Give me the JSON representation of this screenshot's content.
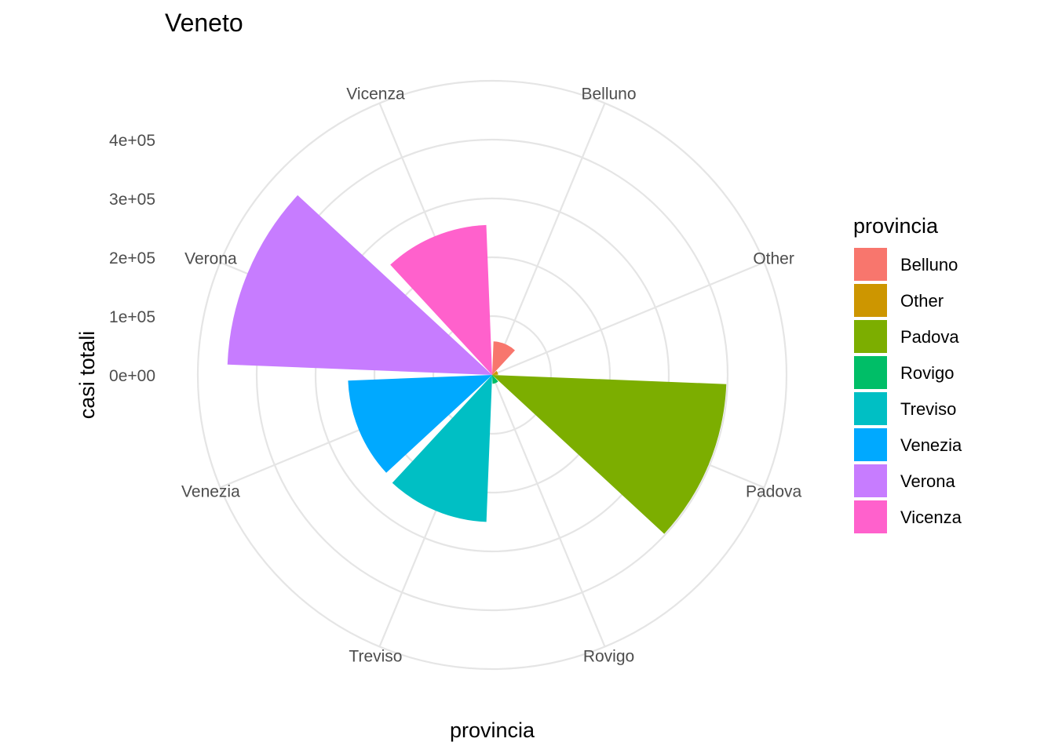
{
  "chart_data": {
    "type": "bar",
    "coord": "polar",
    "title": "Veneto",
    "xlabel": "provincia",
    "ylabel": "casi totali",
    "categories": [
      "Belluno",
      "Other",
      "Padova",
      "Rovigo",
      "Treviso",
      "Venezia",
      "Verona",
      "Vicenza"
    ],
    "values": [
      57000,
      10000,
      398000,
      15000,
      250000,
      245000,
      450000,
      255000
    ],
    "colors": [
      "#F8766D",
      "#CD9600",
      "#7CAE00",
      "#00BE67",
      "#00BFC4",
      "#00A9FF",
      "#C77CFF",
      "#FF61CC"
    ],
    "y_ticks": [
      "0e+00",
      "1e+05",
      "2e+05",
      "3e+05",
      "4e+05"
    ],
    "y_tick_values": [
      0,
      100000,
      200000,
      300000,
      400000
    ],
    "ylim": [
      0,
      500000
    ],
    "grid": true,
    "legend": {
      "title": "provincia",
      "position": "right",
      "entries": [
        "Belluno",
        "Other",
        "Padova",
        "Rovigo",
        "Treviso",
        "Venezia",
        "Verona",
        "Vicenza"
      ]
    }
  }
}
